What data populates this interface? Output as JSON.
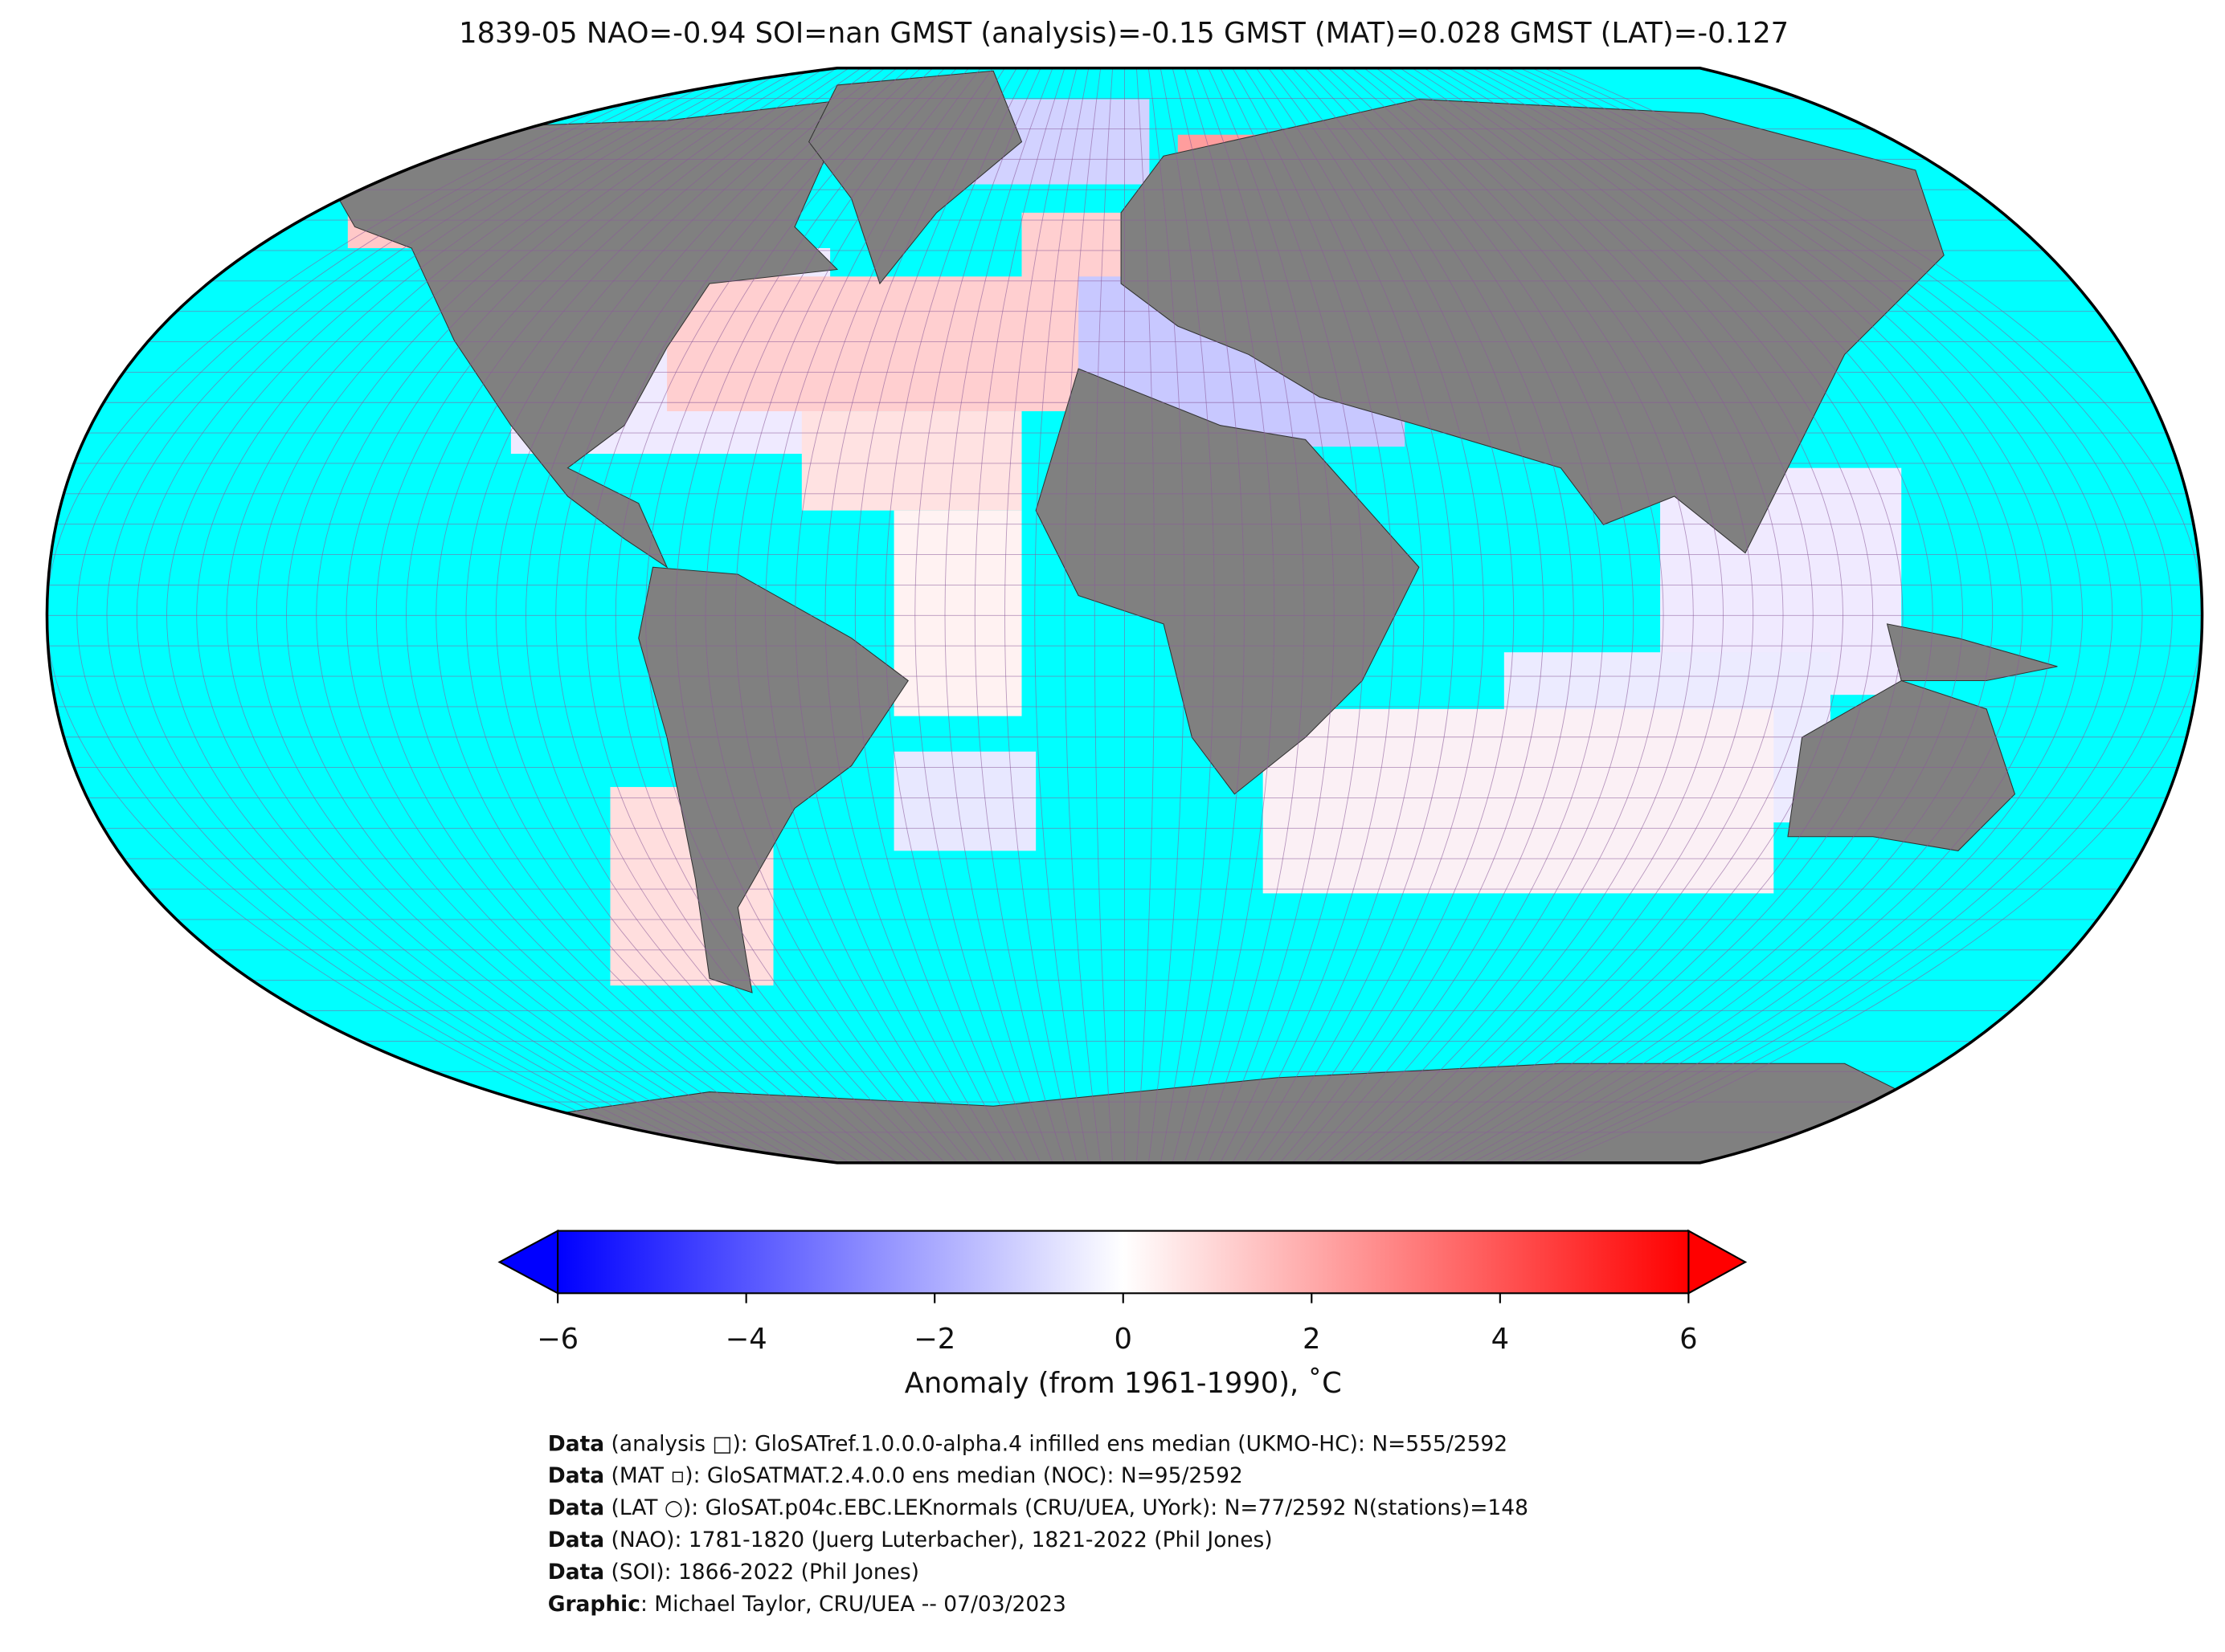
{
  "title": "1839-05 NAO=-0.94 SOI=nan GMST (analysis)=-0.15 GMST (MAT)=0.028 GMST (LAT)=-0.127",
  "colorbar": {
    "lim": [
      -6,
      6
    ],
    "colors": [
      "#0000ff",
      "#ffffff",
      "#ff0000"
    ],
    "ticks": [
      {
        "value": -6,
        "label": "−6"
      },
      {
        "value": -4,
        "label": "−4"
      },
      {
        "value": -2,
        "label": "−2"
      },
      0,
      2,
      4,
      6
    ],
    "label": "Anomaly (from 1961-1990), ˚C"
  },
  "credits": [
    {
      "label": "Data",
      "text": " (analysis □): GloSATref.1.0.0.0-alpha.4 infilled ens median (UKMO-HC): N=555/2592"
    },
    {
      "label": "Data",
      "text": " (MAT ▫): GloSATMAT.2.4.0.0 ens median (NOC): N=95/2592"
    },
    {
      "label": "Data",
      "text": " (LAT ○): GloSAT.p04c.EBC.LEKnormals (CRU/UEA, UYork): N=77/2592 N(stations)=148"
    },
    {
      "label": "Data",
      "text": " (NAO): 1781-1820 (Juerg Luterbacher), 1821-2022 (Phil Jones)"
    },
    {
      "label": "Data",
      "text": " (SOI): 1866-2022 (Phil Jones)"
    },
    {
      "label": "Graphic",
      "text": ": Michael Taylor, CRU/UEA -- 07/03/2023"
    }
  ]
}
